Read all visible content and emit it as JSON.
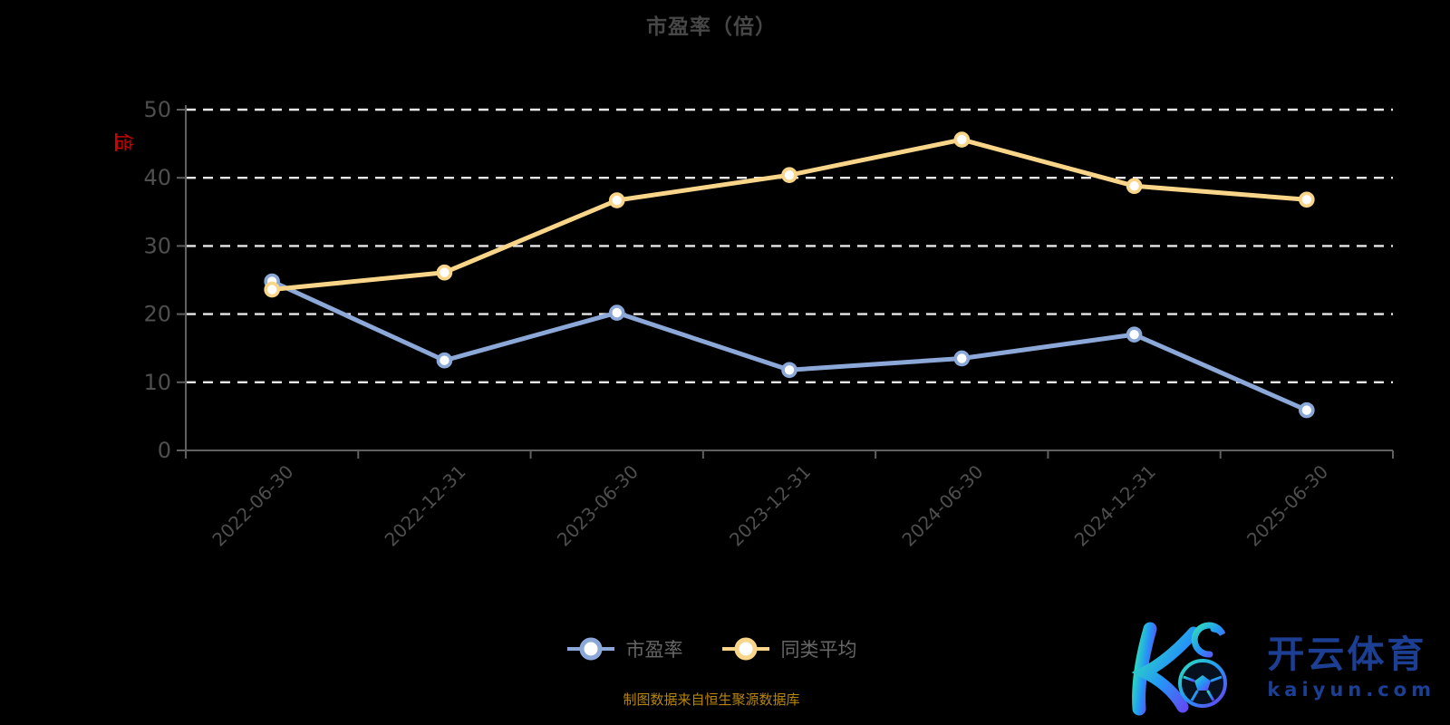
{
  "title": "市盈率（倍）",
  "y_axis": {
    "unit_label": "倍",
    "ticks": [
      "0",
      "10",
      "20",
      "30",
      "40",
      "50"
    ]
  },
  "chart_data": {
    "type": "line",
    "title": "市盈率（倍）",
    "categories": [
      "2022-06-30",
      "2022-12-31",
      "2023-06-30",
      "2023-12-31",
      "2024-06-30",
      "2024-12-31",
      "2025-06-30"
    ],
    "series": [
      {
        "name": "市盈率",
        "color": "#8BA8D8",
        "values": [
          24.8,
          13.2,
          20.2,
          11.8,
          13.5,
          17.0,
          5.9
        ]
      },
      {
        "name": "同类平均",
        "color": "#F9D58A",
        "values": [
          23.6,
          26.1,
          36.7,
          40.4,
          45.6,
          38.8,
          36.8
        ]
      }
    ],
    "ylim": [
      0,
      50
    ],
    "yticks": [
      0,
      10,
      20,
      30,
      40,
      50
    ],
    "ylabel": "倍",
    "xlabel": "",
    "grid": "horizontal dashed",
    "x_label_rotation": 45,
    "legend_position": "bottom",
    "marker": "circle-white-fill"
  },
  "footer": {
    "text": "制图数据来自恒生聚源数据库"
  },
  "logo": {
    "monogram": "K",
    "brand": "开云体育",
    "domain": "kaiyun.com"
  },
  "colors": {
    "background": "#000000",
    "title": "#474747",
    "axis_line": "#606060",
    "axis_label": "#4E4E4E",
    "gridline": "#E8E8E8",
    "legend_text": "#666666",
    "unit_red": "#D40000",
    "footer_gold": "#B8860B",
    "brand_blue": "#1C3F94",
    "series_pe": "#8BA8D8",
    "series_avg": "#F9D58A"
  }
}
